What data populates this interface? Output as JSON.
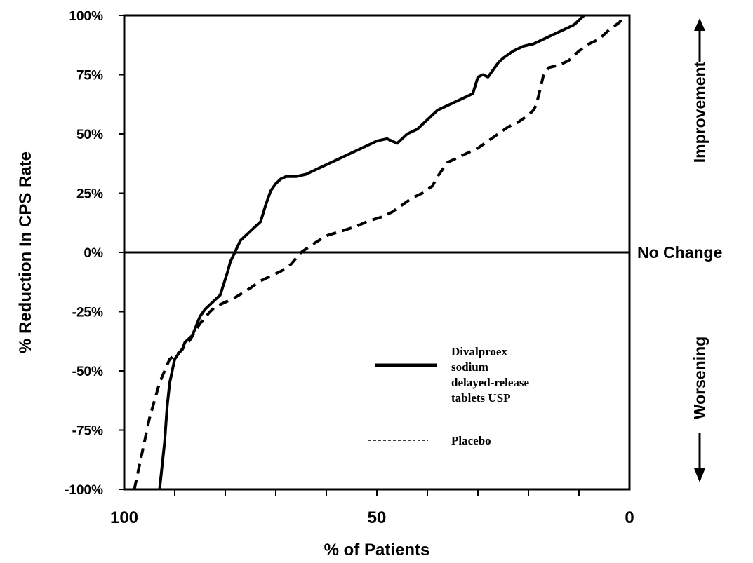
{
  "chart_data": {
    "type": "line",
    "xlabel": "% of Patients",
    "ylabel": "% Reduction In CPS Rate",
    "xlim": [
      100,
      0
    ],
    "ylim": [
      -100,
      100
    ],
    "x_reversed": true,
    "x_ticks": [
      {
        "value": 100,
        "label": "100"
      },
      {
        "value": 50,
        "label": "50"
      },
      {
        "value": 0,
        "label": "0"
      }
    ],
    "y_ticks": [
      {
        "value": 100,
        "label": "100%"
      },
      {
        "value": 75,
        "label": "75%"
      },
      {
        "value": 50,
        "label": "50%"
      },
      {
        "value": 25,
        "label": "25%"
      },
      {
        "value": 0,
        "label": "0%"
      },
      {
        "value": -25,
        "label": "-25%"
      },
      {
        "value": -50,
        "label": "-50%"
      },
      {
        "value": -75,
        "label": "-75%"
      },
      {
        "value": -100,
        "label": "-100%"
      }
    ],
    "reference_line": {
      "y": 0,
      "label": "No Change"
    },
    "side_labels": {
      "improvement": "Improvement",
      "worsening": "Worsening"
    },
    "series": [
      {
        "name": "Divalproex sodium delayed-release tablets USP",
        "style": "solid",
        "x": [
          93,
          92.5,
          92,
          91.5,
          91,
          90,
          89,
          88.5,
          88,
          86.5,
          85,
          84,
          83,
          82,
          81.5,
          81,
          79.5,
          79,
          77,
          76,
          74,
          73,
          72,
          71,
          70,
          69,
          68,
          66,
          64,
          62,
          60,
          58,
          57,
          55,
          53,
          51,
          50,
          49,
          48,
          47,
          46,
          45,
          44,
          43,
          42,
          40,
          38,
          36,
          35,
          34,
          33,
          32,
          31,
          30,
          29,
          28,
          27,
          26,
          25,
          23,
          21,
          19,
          17,
          15,
          13,
          11,
          10,
          9
        ],
        "y": [
          -100,
          -90,
          -80,
          -65,
          -55,
          -45,
          -42,
          -41,
          -38,
          -35,
          -27,
          -24,
          -22,
          -20,
          -19,
          -18,
          -8,
          -4,
          5,
          7,
          11,
          13,
          20,
          26,
          29,
          31,
          32,
          32,
          33,
          35,
          37,
          39,
          40,
          42,
          44,
          46,
          47,
          47.5,
          48,
          47,
          46,
          48,
          50,
          51,
          52,
          56,
          60,
          62,
          63,
          64,
          65,
          66,
          67,
          74,
          75,
          74,
          77,
          80,
          82,
          85,
          87,
          88,
          90,
          92,
          94,
          96,
          98,
          100
        ]
      },
      {
        "name": "Placebo",
        "style": "dashed",
        "x": [
          98,
          97,
          95,
          93,
          91,
          89,
          87,
          85,
          83,
          82,
          80,
          78,
          75,
          73,
          71,
          69,
          67,
          65,
          63,
          60,
          57,
          54,
          52,
          49,
          47,
          45,
          43,
          41,
          39,
          38,
          36,
          34,
          32,
          30,
          28,
          26,
          24,
          22,
          20,
          19,
          18.5,
          18,
          17,
          16,
          14,
          12,
          10,
          8,
          6,
          4,
          2,
          1
        ],
        "y": [
          -100,
          -90,
          -70,
          -55,
          -45,
          -42,
          -37,
          -30,
          -25,
          -23,
          -21,
          -19,
          -15,
          -12,
          -10,
          -8,
          -5,
          0,
          3,
          7,
          9,
          11,
          13,
          15,
          17,
          20,
          23,
          25,
          28,
          32,
          38,
          40,
          42,
          44,
          47,
          50,
          53,
          55,
          58,
          60,
          62,
          66,
          75,
          78,
          79,
          81,
          85,
          88,
          90,
          94,
          97,
          100
        ]
      }
    ],
    "legend": {
      "position": "lower-right",
      "entries": [
        {
          "lines": [
            "Divalproex",
            "sodium",
            "delayed-release",
            "tablets USP"
          ],
          "style": "solid"
        },
        {
          "lines": [
            "Placebo"
          ],
          "style": "dashed"
        }
      ]
    },
    "grid": false
  }
}
